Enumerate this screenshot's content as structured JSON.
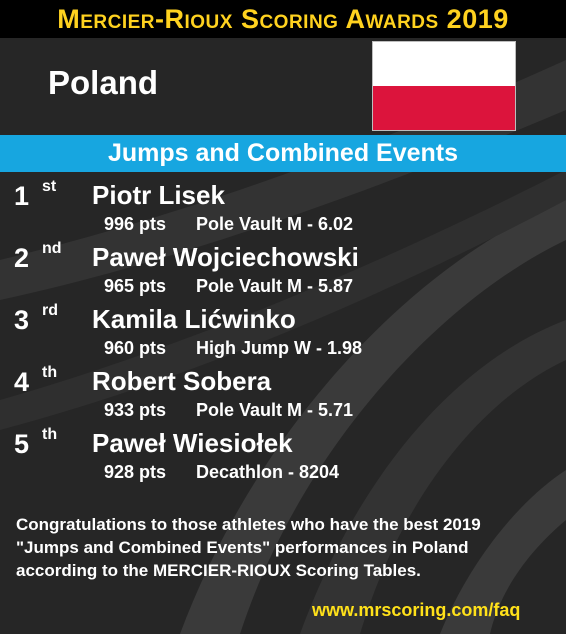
{
  "header": {
    "title": "Mercier-Rioux Scoring Awards 2019"
  },
  "country": {
    "name": "Poland"
  },
  "flag": {
    "top_color": "#ffffff",
    "bottom_color": "#dc143c"
  },
  "category": {
    "label": "Jumps and Combined Events",
    "bar_color": "#17a6e0"
  },
  "ranking": [
    {
      "rank": "1",
      "suffix": "st",
      "athlete": "Piotr Lisek",
      "points": "996 pts",
      "performance": "Pole Vault M  -  6.02"
    },
    {
      "rank": "2",
      "suffix": "nd",
      "athlete": "Paweł Wojciechowski",
      "points": "965 pts",
      "performance": "Pole Vault M  -  5.87"
    },
    {
      "rank": "3",
      "suffix": "rd",
      "athlete": "Kamila Lićwinko",
      "points": "960 pts",
      "performance": "High Jump W  -  1.98"
    },
    {
      "rank": "4",
      "suffix": "th",
      "athlete": "Robert Sobera",
      "points": "933 pts",
      "performance": "Pole Vault M  -  5.71"
    },
    {
      "rank": "5",
      "suffix": "th",
      "athlete": "Paweł Wiesiołek",
      "points": "928 pts",
      "performance": "Decathlon  -  8204"
    }
  ],
  "footer": {
    "text": "Congratulations to those athletes who have the best 2019 \"Jumps and Combined Events\" performances in Poland according to the MERCIER-RIOUX Scoring Tables.",
    "url": "www.mrscoring.com/faq",
    "url_color": "#ffe11a"
  }
}
